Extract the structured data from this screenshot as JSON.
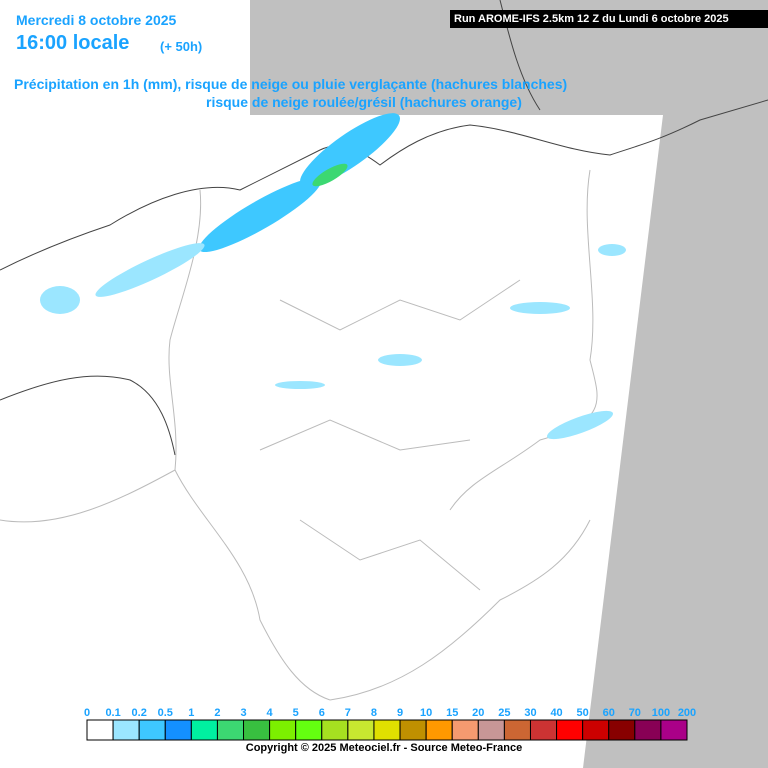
{
  "header": {
    "date": "Mercredi 8 octobre 2025",
    "time": "16:00 locale",
    "lead": "(+ 50h)",
    "run": "Run AROME-IFS 2.5km 12 Z du Lundi 6 octobre 2025",
    "line1": "Précipitation en 1h (mm), risque de neige ou pluie verglaçante (hachures blanches)",
    "line2": "risque de neige roulée/grésil (hachures orange)"
  },
  "legend": {
    "labels": [
      "0",
      "0.1",
      "0.2",
      "0.5",
      "1",
      "2",
      "3",
      "4",
      "5",
      "6",
      "7",
      "8",
      "9",
      "10",
      "15",
      "20",
      "25",
      "30",
      "40",
      "50",
      "60",
      "70",
      "100",
      "200"
    ],
    "colors": [
      "#ffffff",
      "#9be6ff",
      "#3ec8ff",
      "#1490ff",
      "#00f0a0",
      "#3cd872",
      "#38c040",
      "#7cf000",
      "#64ff10",
      "#a6e020",
      "#c8e830",
      "#e0e000",
      "#c09000",
      "#ff9900",
      "#f59a70",
      "#c89696",
      "#cc6633",
      "#cc3333",
      "#ff0000",
      "#cc0000",
      "#880000",
      "#880055",
      "#aa0088",
      "#ff00ff"
    ]
  },
  "footer": {
    "copyright": "Copyright © 2025 Meteociel.fr - Source Meteo-France"
  }
}
